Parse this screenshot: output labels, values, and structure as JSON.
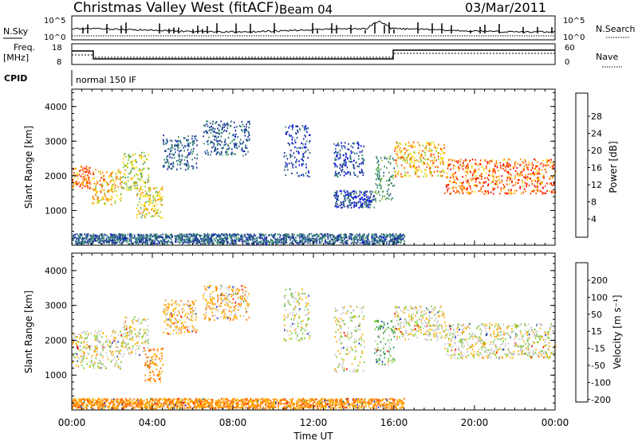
{
  "header": {
    "title": "Christmas Valley West (fitACF)",
    "beam": "Beam 04",
    "date": "03/Mar/2011"
  },
  "status_panels": {
    "nsky_label": "N.Sky",
    "nsearch_label": "N.Search",
    "noise_ticks": [
      "10^5",
      "10^0"
    ],
    "freq_label_line1": "Freq.",
    "freq_label_line2": "[MHz]",
    "freq_ticks": [
      "18",
      "8"
    ],
    "nave_label": "Nave",
    "nave_ticks": [
      "60",
      "0"
    ],
    "cpid_label": "CPID",
    "cpid_value": "normal 150 IF"
  },
  "colorbars": {
    "power": {
      "label": "Power [dB]",
      "ticks": [
        "28",
        "24",
        "20",
        "16",
        "12",
        "8",
        "4"
      ],
      "colors": [
        "#0000ff",
        "#1a2fa0",
        "#2a5f8a",
        "#3a8a70",
        "#50a050",
        "#9acd32",
        "#ffd700",
        "#ff8c00",
        "#ff4500",
        "#ff0000"
      ]
    },
    "velocity": {
      "label": "Velocity [m s⁻¹]",
      "ticks": [
        "200",
        "100",
        "50",
        "15",
        "-15",
        "-50",
        "-100",
        "-200"
      ],
      "colors": [
        "#1a2fcc",
        "#2a5f8a",
        "#3a9a50",
        "#7ccd32",
        "#c8c8c8",
        "#ffb000",
        "#ff7000",
        "#ff0000"
      ]
    }
  },
  "chart_data": [
    {
      "type": "heatmap",
      "title": "",
      "xlabel": "Time UT",
      "ylabel": "Slant Range [km]",
      "xlim": [
        "00:00",
        "24:00"
      ],
      "ylim": [
        0,
        4500
      ],
      "xticks": [
        "00:00",
        "04:00",
        "08:00",
        "12:00",
        "16:00",
        "20:00",
        "00:00"
      ],
      "yticks": [
        "1000",
        "2000",
        "3000",
        "4000"
      ],
      "colorbar": "Power [dB]",
      "scatter_regions": [
        {
          "t0": 0.0,
          "t1": 0.9,
          "r0": 1650,
          "r1": 2300,
          "power": 26
        },
        {
          "t0": 1.0,
          "t1": 2.5,
          "r0": 1200,
          "r1": 2200,
          "power": 22
        },
        {
          "t0": 2.5,
          "t1": 3.8,
          "r0": 1600,
          "r1": 2700,
          "power": 18
        },
        {
          "t0": 3.2,
          "t1": 4.5,
          "r0": 800,
          "r1": 1700,
          "power": 20
        },
        {
          "t0": 4.5,
          "t1": 6.2,
          "r0": 2200,
          "r1": 3200,
          "power": 8
        },
        {
          "t0": 6.5,
          "t1": 8.8,
          "r0": 2600,
          "r1": 3600,
          "power": 8
        },
        {
          "t0": 10.5,
          "t1": 11.8,
          "r0": 2000,
          "r1": 3500,
          "power": 6
        },
        {
          "t0": 13.0,
          "t1": 14.5,
          "r0": 2000,
          "r1": 3000,
          "power": 6
        },
        {
          "t0": 13.0,
          "t1": 15.0,
          "r0": 1100,
          "r1": 1600,
          "power": 6
        },
        {
          "t0": 15.0,
          "t1": 16.0,
          "r0": 1300,
          "r1": 2600,
          "power": 12
        },
        {
          "t0": 16.0,
          "t1": 18.5,
          "r0": 2000,
          "r1": 3000,
          "power": 22
        },
        {
          "t0": 18.5,
          "t1": 24.0,
          "r0": 1500,
          "r1": 2500,
          "power": 26
        },
        {
          "t0": 0.0,
          "t1": 16.5,
          "r0": 60,
          "r1": 350,
          "power": 8
        }
      ]
    },
    {
      "type": "heatmap",
      "title": "",
      "xlabel": "Time UT",
      "ylabel": "Slant Range [km]",
      "xlim": [
        "00:00",
        "24:00"
      ],
      "ylim": [
        0,
        4500
      ],
      "xticks": [
        "00:00",
        "04:00",
        "08:00",
        "12:00",
        "16:00",
        "20:00",
        "00:00"
      ],
      "yticks": [
        "1000",
        "2000",
        "3000",
        "4000"
      ],
      "colorbar": "Velocity [m s⁻¹]",
      "scatter_regions": [
        {
          "t0": 0.0,
          "t1": 2.5,
          "r0": 1200,
          "r1": 2300,
          "velocity": 0
        },
        {
          "t0": 2.5,
          "t1": 3.8,
          "r0": 1600,
          "r1": 2700,
          "velocity": 0
        },
        {
          "t0": 3.6,
          "t1": 4.5,
          "r0": 800,
          "r1": 1800,
          "velocity": -50
        },
        {
          "t0": 4.5,
          "t1": 6.2,
          "r0": 2200,
          "r1": 3200,
          "velocity": -30
        },
        {
          "t0": 6.5,
          "t1": 8.8,
          "r0": 2600,
          "r1": 3600,
          "velocity": -30
        },
        {
          "t0": 10.5,
          "t1": 11.8,
          "r0": 2000,
          "r1": 3500,
          "velocity": 0
        },
        {
          "t0": 13.0,
          "t1": 14.5,
          "r0": 1100,
          "r1": 3000,
          "velocity": 0
        },
        {
          "t0": 15.0,
          "t1": 16.0,
          "r0": 1300,
          "r1": 2600,
          "velocity": 30
        },
        {
          "t0": 16.0,
          "t1": 18.5,
          "r0": 2000,
          "r1": 3000,
          "velocity": 0
        },
        {
          "t0": 18.5,
          "t1": 24.0,
          "r0": 1500,
          "r1": 2500,
          "velocity": 0
        },
        {
          "t0": 0.0,
          "t1": 16.5,
          "r0": 60,
          "r1": 350,
          "velocity": -50
        }
      ]
    }
  ]
}
